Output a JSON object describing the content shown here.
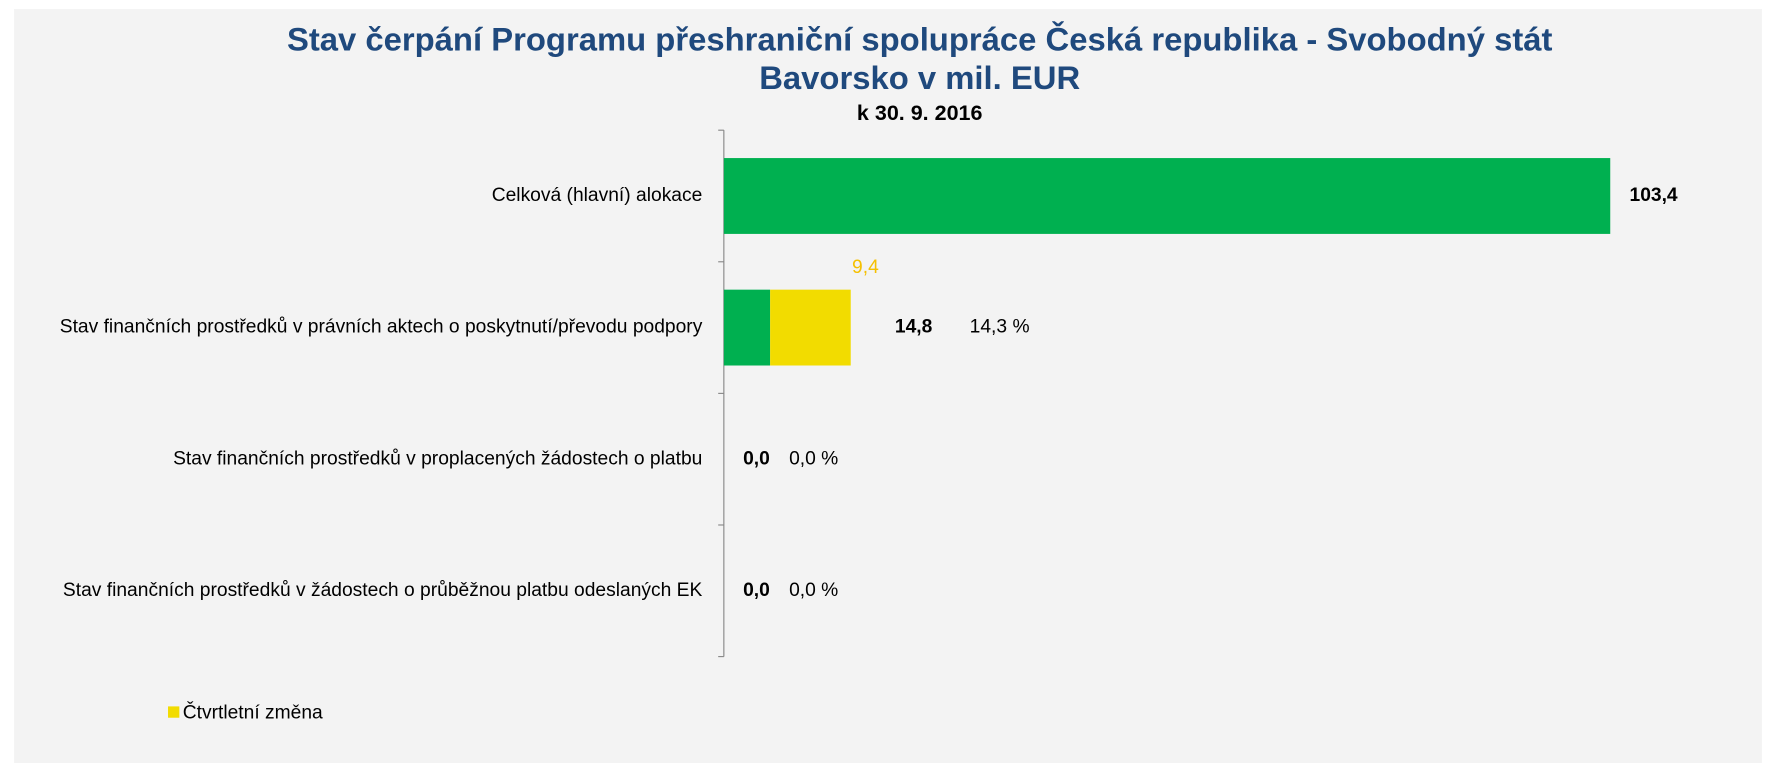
{
  "chart_data": {
    "type": "stacked-barh",
    "title_lines": [
      "Stav čerpání Programu přeshraniční spolupráce Česká republika - Svobodný stát",
      "Bavorsko v mil. EUR"
    ],
    "subtitle": "k 30. 9. 2016",
    "categories": [
      "Celková (hlavní) alokace",
      "Stav finančních prostředků v právních aktech o poskytnutí/převodu podpory",
      "Stav finančních prostředků v proplacených žádostech o platbu",
      "Stav finančních prostředků v žádostech o průběžnou platbu odeslaných EK"
    ],
    "series": [
      {
        "color": "#00b050",
        "values": [
          103.4,
          5.4,
          0,
          0
        ]
      },
      {
        "name": "Čtvrtletní změna",
        "color": "#f2dc00",
        "values": [
          null,
          9.4,
          null,
          null
        ],
        "value_labels": [
          null,
          "9,4",
          null,
          null
        ]
      }
    ],
    "totals": [
      103.4,
      14.8,
      0,
      0
    ],
    "total_labels": [
      "103,4",
      "14,8",
      "0,0",
      "0,0"
    ],
    "shares": [
      null,
      14.3,
      0,
      0
    ],
    "share_labels": [
      null,
      "14,3 %",
      "0,0 %",
      "0,0 %"
    ]
  }
}
